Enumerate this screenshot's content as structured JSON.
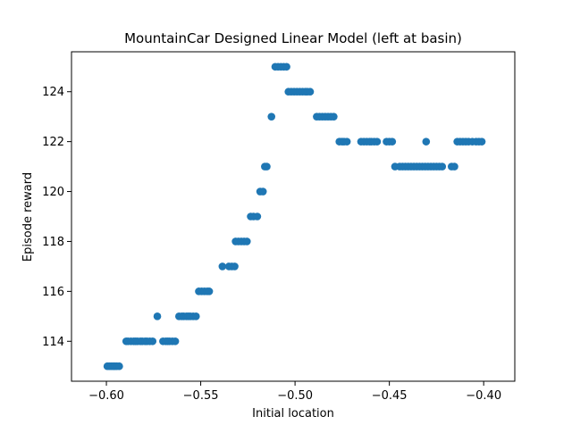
{
  "chart_data": {
    "type": "scatter",
    "title": "MountainCar Designed Linear Model (left at basin)",
    "xlabel": "Initial location",
    "ylabel": "Episode reward",
    "xlim": [
      -0.6185,
      -0.3835
    ],
    "ylim": [
      112.4,
      125.6
    ],
    "xticks": [
      -0.6,
      -0.55,
      -0.5,
      -0.45,
      -0.4
    ],
    "xtick_labels": [
      "−0.60",
      "−0.55",
      "−0.50",
      "−0.45",
      "−0.40"
    ],
    "yticks": [
      114,
      116,
      118,
      120,
      122,
      124
    ],
    "ytick_labels": [
      "114",
      "116",
      "118",
      "120",
      "122",
      "124"
    ],
    "grid": false,
    "marker_color": "#1f77b4",
    "points": [
      [
        -0.5995,
        113
      ],
      [
        -0.5985,
        113
      ],
      [
        -0.5975,
        113
      ],
      [
        -0.5965,
        113
      ],
      [
        -0.5955,
        113
      ],
      [
        -0.5945,
        113
      ],
      [
        -0.5932,
        113
      ],
      [
        -0.5895,
        114
      ],
      [
        -0.5885,
        114
      ],
      [
        -0.587,
        114
      ],
      [
        -0.5855,
        114
      ],
      [
        -0.5845,
        114
      ],
      [
        -0.5835,
        114
      ],
      [
        -0.582,
        114
      ],
      [
        -0.581,
        114
      ],
      [
        -0.5795,
        114
      ],
      [
        -0.5785,
        114
      ],
      [
        -0.577,
        114
      ],
      [
        -0.5755,
        114
      ],
      [
        -0.573,
        115
      ],
      [
        -0.57,
        114
      ],
      [
        -0.5685,
        114
      ],
      [
        -0.5675,
        114
      ],
      [
        -0.5665,
        114
      ],
      [
        -0.565,
        114
      ],
      [
        -0.5635,
        114
      ],
      [
        -0.5615,
        115
      ],
      [
        -0.56,
        115
      ],
      [
        -0.559,
        115
      ],
      [
        -0.5575,
        115
      ],
      [
        -0.5565,
        115
      ],
      [
        -0.5555,
        115
      ],
      [
        -0.554,
        115
      ],
      [
        -0.5525,
        115
      ],
      [
        -0.551,
        116
      ],
      [
        -0.5495,
        116
      ],
      [
        -0.548,
        116
      ],
      [
        -0.5465,
        116
      ],
      [
        -0.5455,
        116
      ],
      [
        -0.5385,
        117
      ],
      [
        -0.535,
        117
      ],
      [
        -0.5335,
        117
      ],
      [
        -0.532,
        117
      ],
      [
        -0.5315,
        118
      ],
      [
        -0.53,
        118
      ],
      [
        -0.5285,
        118
      ],
      [
        -0.527,
        118
      ],
      [
        -0.5255,
        118
      ],
      [
        -0.5235,
        119
      ],
      [
        -0.522,
        119
      ],
      [
        -0.52,
        119
      ],
      [
        -0.5185,
        120
      ],
      [
        -0.517,
        120
      ],
      [
        -0.516,
        121
      ],
      [
        -0.515,
        121
      ],
      [
        -0.5125,
        123
      ],
      [
        -0.5105,
        125
      ],
      [
        -0.509,
        125
      ],
      [
        -0.5075,
        125
      ],
      [
        -0.506,
        125
      ],
      [
        -0.5045,
        125
      ],
      [
        -0.5035,
        124
      ],
      [
        -0.502,
        124
      ],
      [
        -0.5005,
        124
      ],
      [
        -0.499,
        124
      ],
      [
        -0.4975,
        124
      ],
      [
        -0.496,
        124
      ],
      [
        -0.4945,
        124
      ],
      [
        -0.4935,
        124
      ],
      [
        -0.492,
        124
      ],
      [
        -0.4885,
        123
      ],
      [
        -0.487,
        123
      ],
      [
        -0.4855,
        123
      ],
      [
        -0.484,
        123
      ],
      [
        -0.4825,
        123
      ],
      [
        -0.481,
        123
      ],
      [
        -0.4795,
        123
      ],
      [
        -0.4765,
        122
      ],
      [
        -0.475,
        122
      ],
      [
        -0.474,
        122
      ],
      [
        -0.4725,
        122
      ],
      [
        -0.465,
        122
      ],
      [
        -0.4635,
        122
      ],
      [
        -0.462,
        122
      ],
      [
        -0.4605,
        122
      ],
      [
        -0.4595,
        122
      ],
      [
        -0.458,
        122
      ],
      [
        -0.4565,
        122
      ],
      [
        -0.4515,
        122
      ],
      [
        -0.45,
        122
      ],
      [
        -0.4485,
        122
      ],
      [
        -0.447,
        121
      ],
      [
        -0.4445,
        121
      ],
      [
        -0.443,
        121
      ],
      [
        -0.4415,
        121
      ],
      [
        -0.44,
        121
      ],
      [
        -0.4385,
        121
      ],
      [
        -0.437,
        121
      ],
      [
        -0.4355,
        121
      ],
      [
        -0.434,
        121
      ],
      [
        -0.4325,
        121
      ],
      [
        -0.431,
        121
      ],
      [
        -0.4295,
        121
      ],
      [
        -0.428,
        121
      ],
      [
        -0.4305,
        122
      ],
      [
        -0.4265,
        121
      ],
      [
        -0.425,
        121
      ],
      [
        -0.4235,
        121
      ],
      [
        -0.422,
        121
      ],
      [
        -0.417,
        121
      ],
      [
        -0.4155,
        121
      ],
      [
        -0.414,
        122
      ],
      [
        -0.4125,
        122
      ],
      [
        -0.411,
        122
      ],
      [
        -0.4095,
        122
      ],
      [
        -0.408,
        122
      ],
      [
        -0.406,
        122
      ],
      [
        -0.404,
        122
      ],
      [
        -0.4025,
        122
      ],
      [
        -0.401,
        122
      ]
    ]
  }
}
